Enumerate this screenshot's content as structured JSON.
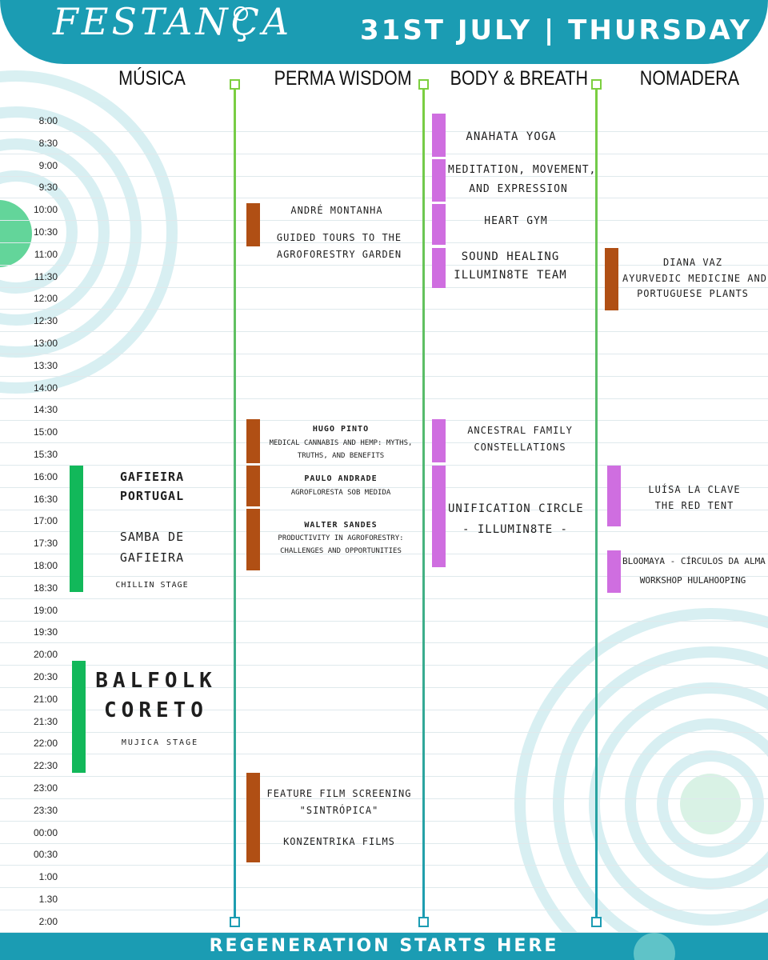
{
  "header": {
    "logo_text": "FESTANÇA",
    "date": "31ST JULY | THURSDAY"
  },
  "columns": [
    "MÚSICA",
    "PERMA WISDOM",
    "BODY & BREATH",
    "NOMADERA"
  ],
  "times": [
    "8:00",
    "8:30",
    "9:00",
    "9:30",
    "10:00",
    "10:30",
    "11:00",
    "11:30",
    "12:00",
    "12:30",
    "13:00",
    "13:30",
    "14:00",
    "14:30",
    "15:00",
    "15:30",
    "16:00",
    "16:30",
    "17:00",
    "17:30",
    "18:00",
    "18:30",
    "19:00",
    "19:30",
    "20:00",
    "20:30",
    "21:00",
    "21:30",
    "22:00",
    "22:30",
    "23:00",
    "23:30",
    "00:00",
    "00:30",
    "1:00",
    "1.30",
    "2:00"
  ],
  "musica": {
    "gafieira": {
      "title_line1": "GAFIEIRA",
      "title_line2": "PORTUGAL",
      "sub_line1": "SAMBA DE",
      "sub_line2": "GAFIEIRA",
      "stage": "CHILLIN STAGE"
    },
    "balfolk": {
      "title_line1": "BALFOLK",
      "title_line2": "CORETO",
      "stage": "MUJICA STAGE"
    }
  },
  "perma": {
    "andre": {
      "name": "ANDRÉ MONTANHA",
      "line1": "GUIDED TOURS TO THE",
      "line2": "AGROFORESTRY GARDEN"
    },
    "hugo": {
      "name": "HUGO PINTO",
      "line1": "MEDICAL CANNABIS AND HEMP: MYTHS,",
      "line2": "TRUTHS, AND BENEFITS"
    },
    "paulo": {
      "name": "PAULO ANDRADE",
      "line1": "AGROFLORESTA SOB MEDIDA"
    },
    "walter": {
      "name": "WALTER SANDES",
      "line1": "PRODUCTIVITY IN AGROFORESTRY:",
      "line2": "CHALLENGES AND OPPORTUNITIES"
    },
    "film": {
      "line1": "FEATURE FILM SCREENING",
      "line2": "\"SINTRÓPICA\"",
      "line3": "KONZENTRIKA FILMS"
    }
  },
  "body": {
    "anahata": "ANAHATA YOGA",
    "meditation_line1": "MEDITATION, MOVEMENT,",
    "meditation_line2": "AND EXPRESSION",
    "heart": "HEART GYM",
    "sound_line1": "SOUND HEALING",
    "sound_line2": "ILLUMIN8TE TEAM",
    "ancestral_line1": "ANCESTRAL FAMILY",
    "ancestral_line2": "CONSTELLATIONS",
    "unification_line1": "UNIFICATION CIRCLE",
    "unification_line2": "- ILLUMIN8TE -"
  },
  "nomadera": {
    "diana_line1": "DIANA VAZ",
    "diana_line2": "AYURVEDIC MEDICINE AND",
    "diana_line3": "PORTUGUESE PLANTS",
    "luisa_line1": "LUÍSA LA CLAVE",
    "luisa_line2": "THE RED TENT",
    "bloomaya_line1": "BLOOMAYA -  CÍRCULOS DA ALMA",
    "bloomaya_line2": "WORKSHOP HULAHOOPING"
  },
  "footer": {
    "tagline": "REGENERATION STARTS HERE"
  },
  "colors": {
    "teal": "#1b9cb3",
    "green_bar": "#12b85a",
    "brown_bar": "#b04f14",
    "violet_bar": "#cf6ee0"
  }
}
